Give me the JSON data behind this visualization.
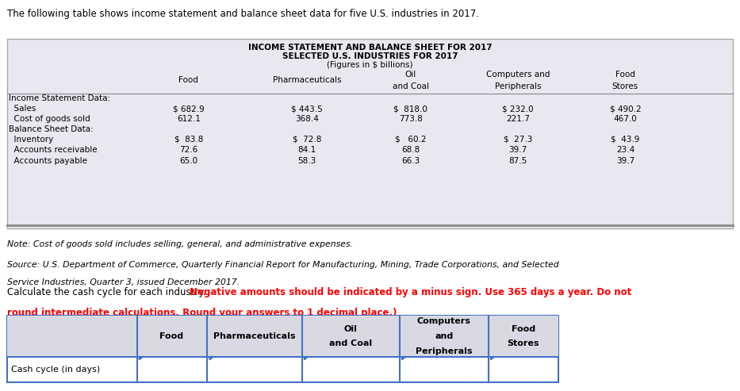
{
  "intro_text": "The following table shows income statement and balance sheet data for five U.S. industries in 2017.",
  "table1_title1": "INCOME STATEMENT AND BALANCE SHEET FOR 2017",
  "table1_title2": "SELECTED U.S. INDUSTRIES FOR 2017",
  "table1_title3": "(Figures in $ billions)",
  "col_headers": [
    "Food",
    "Pharmaceuticals",
    "Oil\nand Coal",
    "Computers and\nPeripherals",
    "Food\nStores"
  ],
  "row_labels": [
    "Income Statement Data:",
    "  Sales",
    "  Cost of goods sold",
    "Balance Sheet Data:",
    "  Inventory",
    "  Accounts receivable",
    "  Accounts payable"
  ],
  "table1_data": [
    [
      "",
      "",
      "",
      "",
      ""
    ],
    [
      "$ 682.9",
      "$ 443.5",
      "$  818.0",
      "$ 232.0",
      "$ 490.2"
    ],
    [
      "612.1",
      "368.4",
      "773.8",
      "221.7",
      "467.0"
    ],
    [
      "",
      "",
      "",
      "",
      ""
    ],
    [
      "$  83.8",
      "$  72.8",
      "$   60.2",
      "$  27.3",
      "$  43.9"
    ],
    [
      "72.6",
      "84.1",
      "68.8",
      "39.7",
      "23.4"
    ],
    [
      "65.0",
      "58.3",
      "66.3",
      "87.5",
      "39.7"
    ]
  ],
  "note_text": "Note: Cost of goods sold includes selling, general, and administrative expenses.",
  "source_line1": "Source: U.S. Department of Commerce, Quarterly Financial Report for Manufacturing, Mining, Trade Corporations, and Selected",
  "source_line2": "Service Industries, Quarter 3, issued December 2017.",
  "calc_text_normal": "Calculate the cash cycle for each industry. ",
  "calc_text_bold_red_line1": "Negative amounts should be indicated by a minus sign. Use 365 days a year. Do not",
  "calc_text_bold_red_line2": "round intermediate calculations. Round your answers to 1 decimal place.)",
  "calc_bold_prefix": "(",
  "table2_col_headers": [
    "Food",
    "Pharmaceuticals",
    "Oil\nand Coal",
    "Computers\nand\nPeripherals",
    "Food\nStores"
  ],
  "table2_row_label": "Cash cycle (in days)",
  "header_bg": "#d9d9e3",
  "table_border_color": "#4472c4",
  "table1_bg": "#e8e8f0",
  "bg_color": "#ffffff"
}
